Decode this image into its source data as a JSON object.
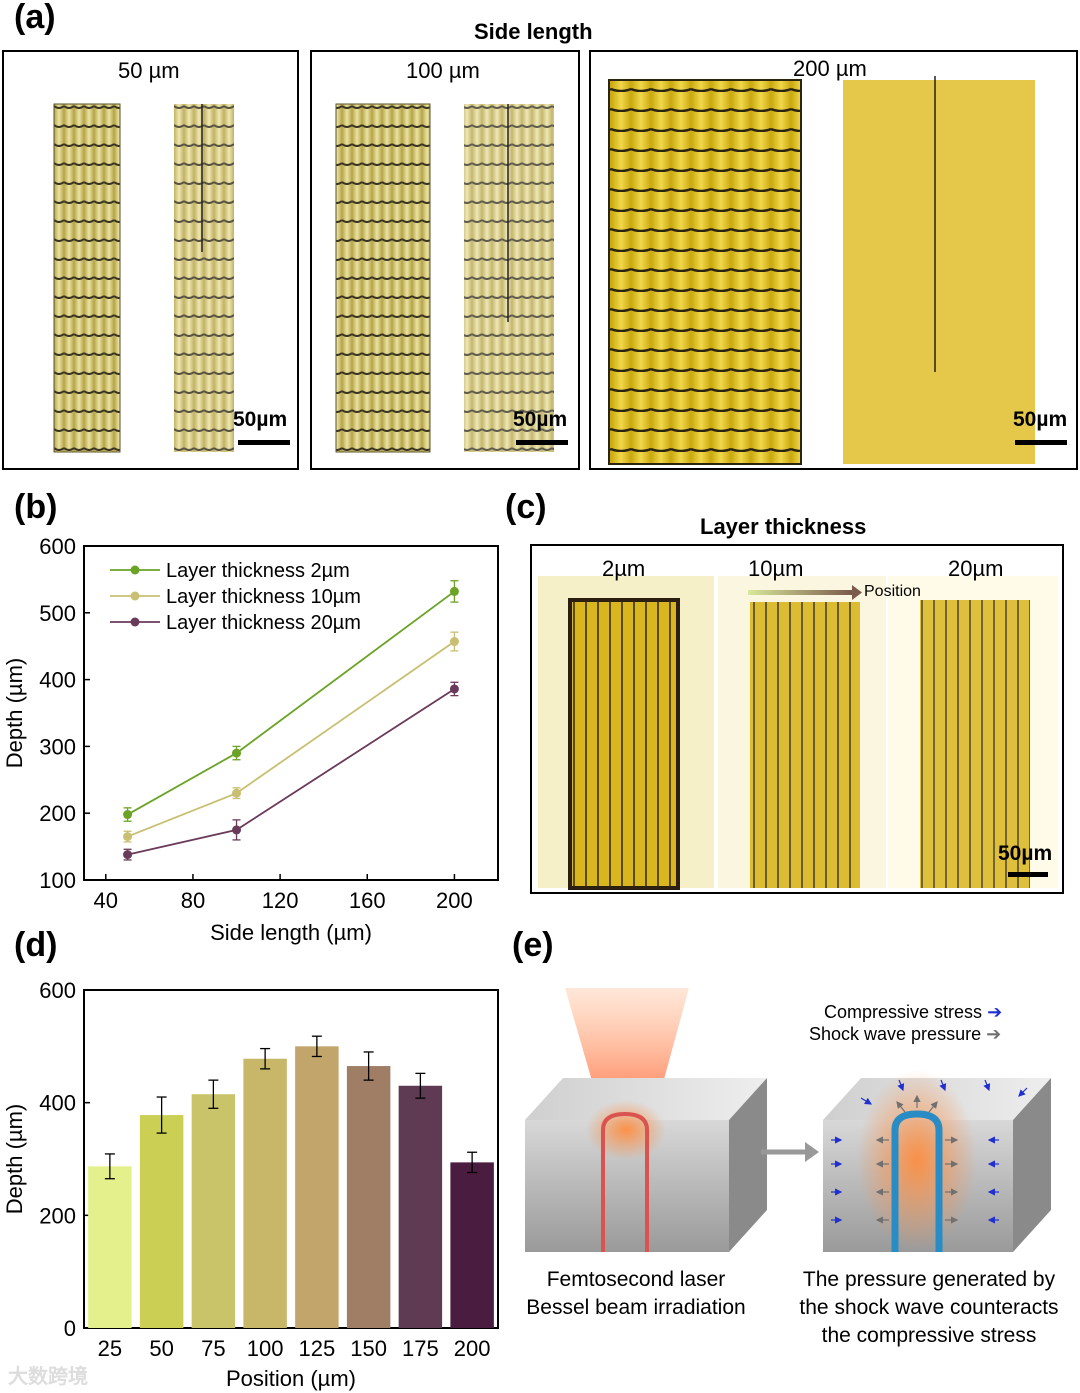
{
  "panel_a": {
    "letter": "(a)",
    "title": "Side length",
    "labels": [
      "50 µm",
      "100 µm",
      "200 µm"
    ],
    "scale_bar": "50µm"
  },
  "panel_b": {
    "letter": "(b)"
  },
  "panel_c": {
    "letter": "(c)",
    "title": "Layer thickness",
    "labels": [
      "2µm",
      "10µm",
      "20µm"
    ],
    "position_label": "Position",
    "scale_bar": "50µm"
  },
  "panel_d": {
    "letter": "(d)"
  },
  "panel_e": {
    "letter": "(e)",
    "legend_compressive": "Compressive stress",
    "legend_shock": "Shock wave pressure",
    "caption_left": [
      "Femtosecond laser",
      "Bessel beam irradiation"
    ],
    "caption_right": [
      "The pressure generated by",
      "the shock wave counteracts",
      "the compressive stress"
    ],
    "colors": {
      "compressive": "#1f2fd0",
      "shock": "#707070",
      "channel_red": "#d9534f",
      "channel_blue": "#2a8cc4"
    }
  },
  "watermark": "大数跨境",
  "chart_data": [
    {
      "type": "line",
      "panel": "b",
      "xlabel": "Side length (µm)",
      "ylabel": "Depth (µm)",
      "xlim": [
        30,
        220
      ],
      "ylim": [
        100,
        600
      ],
      "xticks": [
        40,
        80,
        120,
        160,
        200
      ],
      "yticks": [
        100,
        200,
        300,
        400,
        500,
        600
      ],
      "x": [
        50,
        100,
        200
      ],
      "series": [
        {
          "name": "Layer thickness 2µm",
          "color": "#6aa326",
          "values": [
            198,
            290,
            532
          ],
          "errors": [
            10,
            10,
            16
          ]
        },
        {
          "name": "Layer thickness 10µm",
          "color": "#c9bf72",
          "values": [
            165,
            230,
            457
          ],
          "errors": [
            8,
            8,
            14
          ]
        },
        {
          "name": "Layer thickness 20µm",
          "color": "#6a3a5a",
          "values": [
            138,
            175,
            386
          ],
          "errors": [
            8,
            15,
            10
          ]
        }
      ],
      "legend_position": "top-left"
    },
    {
      "type": "bar",
      "panel": "d",
      "xlabel": "Position (µm)",
      "ylabel": "Depth (µm)",
      "ylim": [
        0,
        600
      ],
      "yticks": [
        0,
        200,
        400,
        600
      ],
      "categories": [
        "25",
        "50",
        "75",
        "100",
        "125",
        "150",
        "175",
        "200"
      ],
      "values": [
        287,
        378,
        415,
        478,
        500,
        465,
        430,
        294
      ],
      "errors": [
        22,
        32,
        25,
        18,
        18,
        25,
        22,
        18
      ],
      "colors": [
        "#e3f08c",
        "#cbd054",
        "#c9c46a",
        "#c8b669",
        "#c2a56a",
        "#a07e66",
        "#5e3a53",
        "#4a1d40"
      ]
    }
  ]
}
